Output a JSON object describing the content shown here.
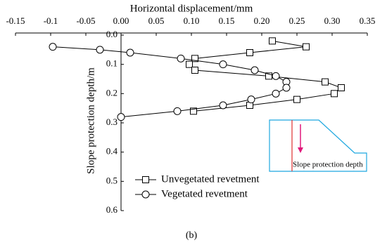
{
  "chart_data": {
    "type": "line",
    "x_label": "Horizontal displacement/mm",
    "y_label": "Slope protection depth/m",
    "xlim": [
      -0.15,
      0.35
    ],
    "xticks": [
      -0.15,
      -0.1,
      -0.05,
      {
        "value": 0,
        "label": "0.00"
      },
      0.05,
      {
        "value": 0.1,
        "label": "0.10"
      },
      0.15,
      {
        "value": 0.2,
        "label": "0.20"
      },
      0.25,
      {
        "value": 0.3,
        "label": "0.30"
      },
      0.35
    ],
    "ylim": [
      0,
      0.6
    ],
    "yticks": [
      {
        "value": 0,
        "label": "0.0"
      },
      0.1,
      0.2,
      0.3,
      0.4,
      0.5,
      0.6
    ],
    "y_inverted": true,
    "x_axis_position": "top",
    "legend_position": "lower-left",
    "series": [
      {
        "name": "Unvegetated revetment",
        "marker": "square",
        "color": "#000000",
        "x": [
          0.215,
          0.263,
          0.183,
          0.105,
          0.097,
          0.105,
          0.21,
          0.29,
          0.313,
          0.303,
          0.25,
          0.183,
          0.103
        ],
        "values": [
          0.02,
          0.04,
          0.06,
          0.08,
          0.1,
          0.12,
          0.14,
          0.16,
          0.18,
          0.2,
          0.22,
          0.24,
          0.26
        ]
      },
      {
        "name": "Vegetated revetment",
        "marker": "circle",
        "color": "#000000",
        "x": [
          -0.097,
          -0.03,
          0.013,
          0.085,
          0.145,
          0.19,
          0.22,
          0.235,
          0.235,
          0.22,
          0.185,
          0.145,
          0.08,
          0.0
        ],
        "values": [
          0.04,
          0.05,
          0.06,
          0.08,
          0.1,
          0.12,
          0.14,
          0.16,
          0.18,
          0.2,
          0.22,
          0.24,
          0.26,
          0.28
        ]
      }
    ],
    "inset_label": "Slope protection depth",
    "caption": "(b)"
  }
}
